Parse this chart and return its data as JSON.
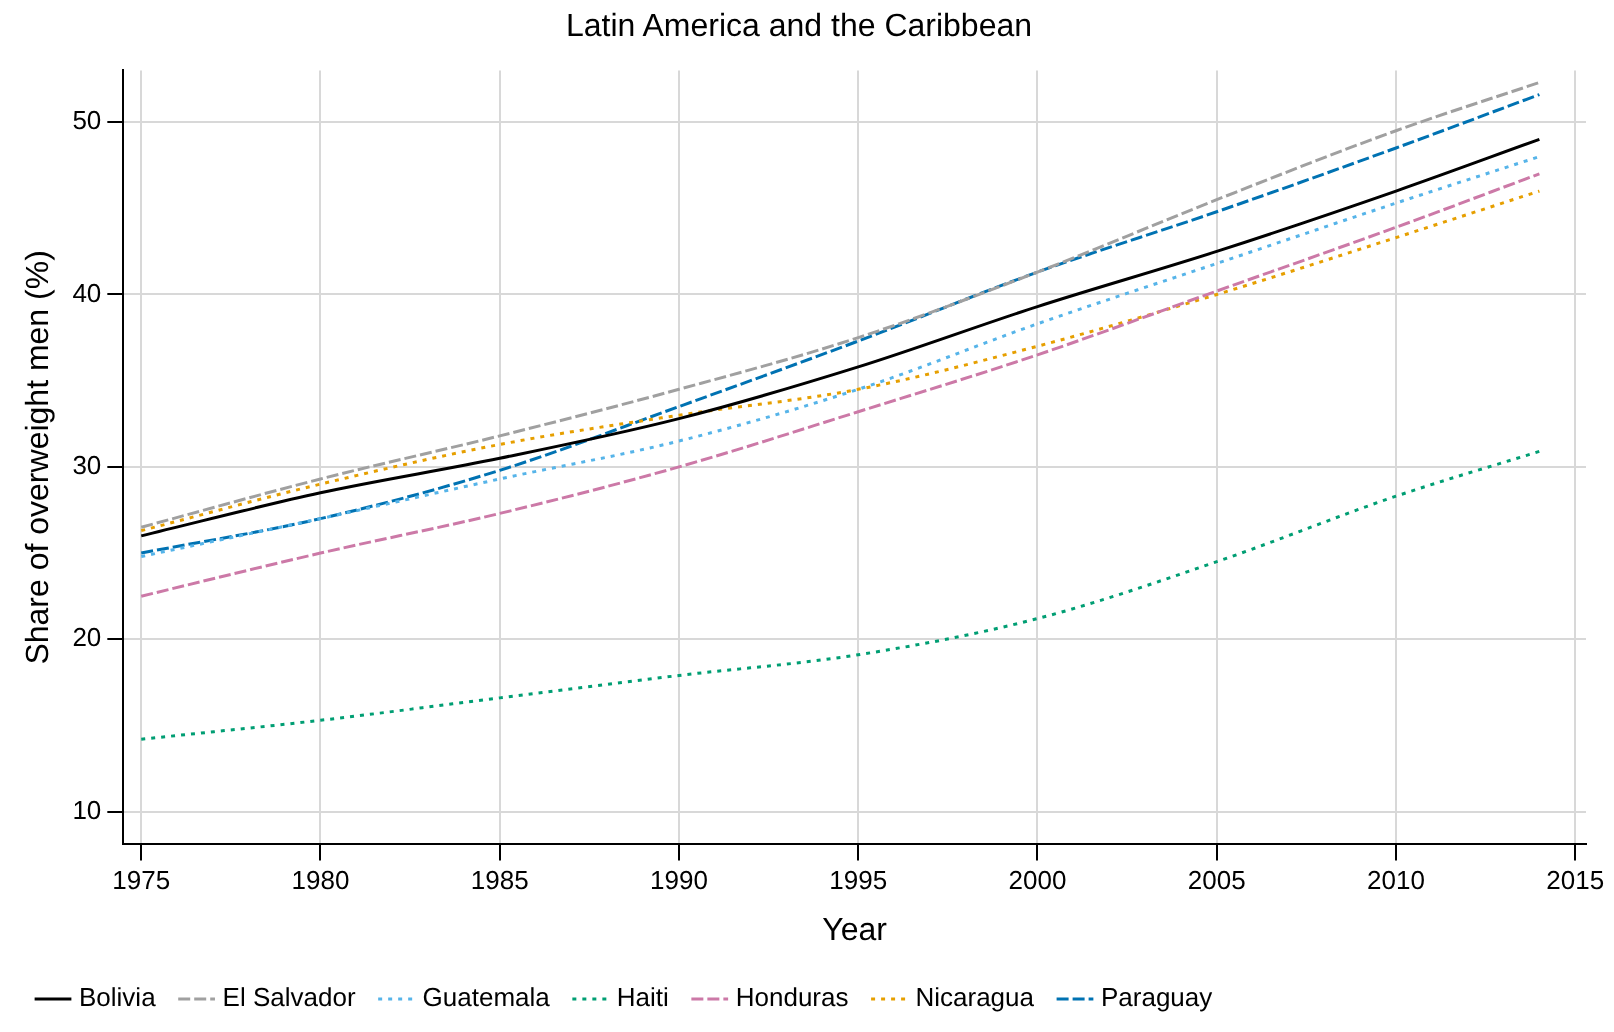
{
  "chart_data": {
    "type": "line",
    "title": "Latin America and the Caribbean",
    "xlabel": "Year",
    "ylabel": "Share of overweight men (%)",
    "x": [
      1975,
      1980,
      1985,
      1990,
      1995,
      2000,
      2005,
      2010,
      2014
    ],
    "xlim": [
      1974.5,
      2015.3
    ],
    "xticks": [
      1975,
      1980,
      1985,
      1990,
      1995,
      2000,
      2005,
      2010,
      2015
    ],
    "ylim": [
      8.1,
      53
    ],
    "yticks": [
      10,
      20,
      30,
      40,
      50
    ],
    "grid": true,
    "legend": "bottom",
    "marker": "none",
    "series": [
      {
        "name": "Bolivia",
        "color": "#000000",
        "line_style": "solid",
        "values": [
          26.0,
          28.5,
          30.5,
          32.8,
          35.8,
          39.3,
          42.5,
          46.0,
          49.0
        ]
      },
      {
        "name": "El Salvador",
        "color": "#a0a0a0",
        "line_style": "dashed",
        "values": [
          26.5,
          29.3,
          31.8,
          34.5,
          37.5,
          41.3,
          45.5,
          49.5,
          52.3
        ]
      },
      {
        "name": "Guatemala",
        "color": "#56b4e9",
        "line_style": "dotted",
        "values": [
          24.8,
          27.0,
          29.3,
          31.5,
          34.5,
          38.3,
          41.8,
          45.3,
          48.0
        ]
      },
      {
        "name": "Haiti",
        "color": "#009e73",
        "line_style": "dotted",
        "values": [
          14.2,
          15.3,
          16.6,
          17.9,
          19.1,
          21.2,
          24.5,
          28.3,
          30.9
        ]
      },
      {
        "name": "Honduras",
        "color": "#cc79a7",
        "line_style": "dashed",
        "values": [
          22.5,
          25.0,
          27.3,
          30.0,
          33.2,
          36.5,
          40.2,
          43.9,
          47.0
        ]
      },
      {
        "name": "Nicaragua",
        "color": "#e69f00",
        "line_style": "dotted",
        "values": [
          26.3,
          29.0,
          31.3,
          33.0,
          34.5,
          37.0,
          40.0,
          43.3,
          46.0
        ]
      },
      {
        "name": "Paraguay",
        "color": "#0072b2",
        "line_style": "dashed",
        "values": [
          25.0,
          27.0,
          29.8,
          33.5,
          37.3,
          41.3,
          44.8,
          48.5,
          51.6
        ]
      }
    ]
  }
}
